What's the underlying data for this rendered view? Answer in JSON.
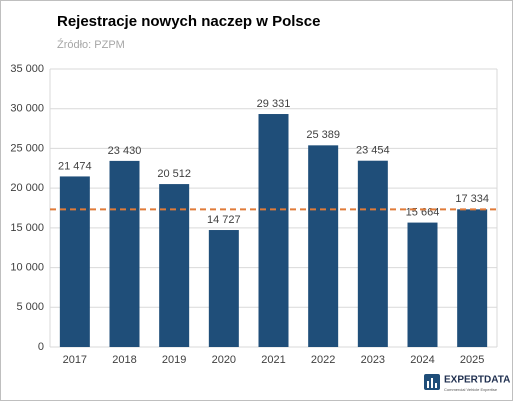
{
  "chart_data": {
    "type": "bar",
    "title": "Rejestracje nowych naczep w Polsce",
    "subtitle": "Źródło: PZPM",
    "categories": [
      "2017",
      "2018",
      "2019",
      "2020",
      "2021",
      "2022",
      "2023",
      "2024",
      "2025"
    ],
    "values": [
      21474,
      23430,
      20512,
      14727,
      29331,
      25389,
      23454,
      15664,
      17334
    ],
    "value_labels": [
      "21 474",
      "23 430",
      "20 512",
      "14 727",
      "29 331",
      "25 389",
      "23 454",
      "15 664",
      "17 334"
    ],
    "color": "#1f4e79",
    "ylim": [
      0,
      35000
    ],
    "yticks": [
      0,
      {
        "value": 5000,
        "label": "5 000"
      },
      {
        "value": 10000,
        "label": "10 000"
      },
      {
        "value": 15000,
        "label": "15 000"
      },
      {
        "value": 20000,
        "label": "20 000"
      },
      {
        "value": 25000,
        "label": "25 000"
      },
      {
        "value": 30000,
        "label": "30 000"
      },
      {
        "value": 35000,
        "label": "35 000"
      }
    ],
    "grid": true,
    "reference_line": {
      "value": 17334,
      "color": "#e07b39"
    },
    "logo": {
      "name": "EXPERTDATA",
      "tagline": "Commercial Vehicle Expertise"
    }
  }
}
